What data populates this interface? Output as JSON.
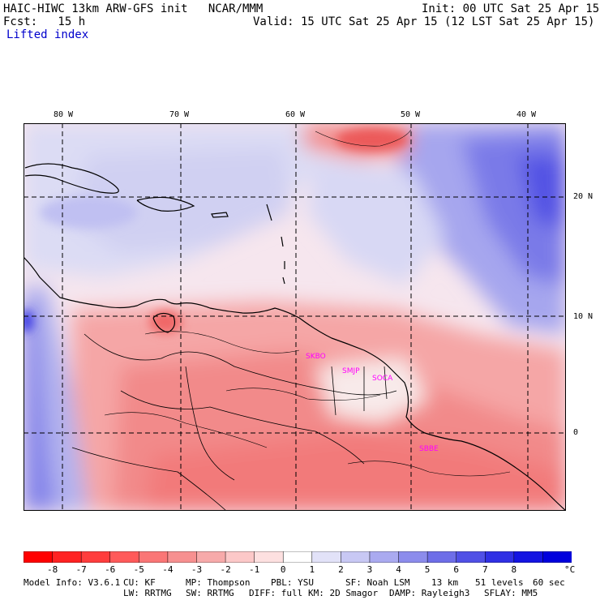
{
  "header": {
    "model_title": "HAIC-HIWC 13km ARW-GFS init   NCAR/MMM",
    "init": "Init: 00 UTC Sat 25 Apr 15",
    "fcst_label": "Fcst:   15 h",
    "valid": "Valid: 15 UTC Sat 25 Apr 15 (12 LST Sat 25 Apr 15)",
    "field": "Lifted index"
  },
  "map": {
    "lon_labels": [
      "80 W",
      "70 W",
      "60 W",
      "50 W",
      "40 W"
    ],
    "lat_labels": [
      "20 N",
      "10 N",
      "0"
    ],
    "stations": [
      "SKBO",
      "SMJP",
      "SOCA",
      "SBBE"
    ]
  },
  "colorbar": {
    "unit": "°C",
    "tick_labels": [
      "-8",
      "-7",
      "-6",
      "-5",
      "-4",
      "-3",
      "-2",
      "-1",
      "0",
      "1",
      "2",
      "3",
      "4",
      "5",
      "6",
      "7",
      "8"
    ],
    "colors": [
      "#ff0000",
      "#ff2222",
      "#ff3d3d",
      "#ff5a5a",
      "#fa7676",
      "#f79090",
      "#f7aaaa",
      "#fcc8c8",
      "#fde0e0",
      "#ffffff",
      "#e2e2f8",
      "#c8c8f4",
      "#aaaaf0",
      "#8c8cec",
      "#6e6ee8",
      "#5050e6",
      "#3030e4",
      "#1414e2",
      "#0000dd"
    ]
  },
  "footer": {
    "line1": [
      "Model Info: V3.6.1",
      "CU: KF",
      "MP: Thompson",
      "PBL: YSU",
      "SF: Noah LSM",
      "13 km",
      "51 levels",
      "60 sec"
    ],
    "line2": [
      "LW: RRTMG",
      "SW: RRTMG",
      "DIFF: full",
      "KM: 2D Smagor",
      "DAMP: Rayleigh3",
      "SFLAY: MM5"
    ]
  }
}
